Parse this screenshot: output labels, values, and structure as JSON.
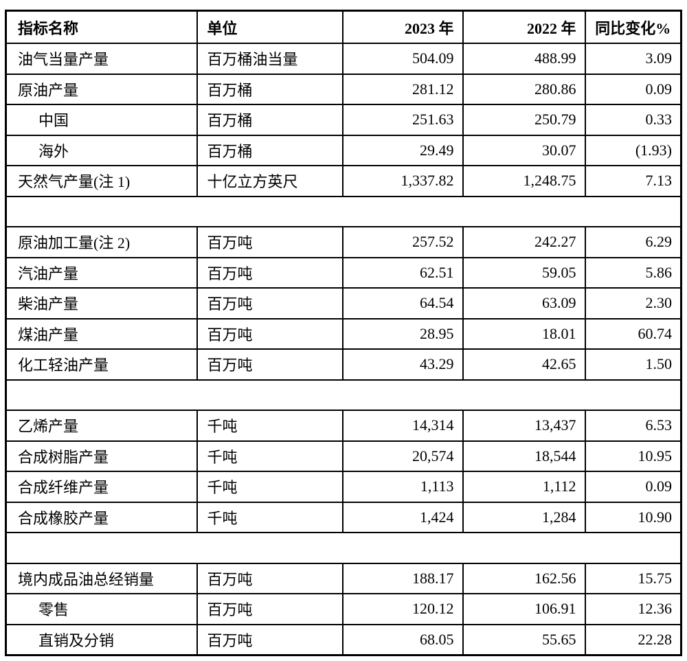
{
  "table": {
    "columns": [
      "指标名称",
      "单位",
      "2023 年",
      "2022 年",
      "同比变化%"
    ],
    "rows": [
      {
        "name": "油气当量产量",
        "unit": "百万桶油当量",
        "y2023": "504.09",
        "y2022": "488.99",
        "change": "3.09",
        "indent": false,
        "empty": false
      },
      {
        "name": "原油产量",
        "unit": "百万桶",
        "y2023": "281.12",
        "y2022": "280.86",
        "change": "0.09",
        "indent": false,
        "empty": false
      },
      {
        "name": "中国",
        "unit": "百万桶",
        "y2023": "251.63",
        "y2022": "250.79",
        "change": "0.33",
        "indent": true,
        "empty": false
      },
      {
        "name": "海外",
        "unit": "百万桶",
        "y2023": "29.49",
        "y2022": "30.07",
        "change": "(1.93)",
        "indent": true,
        "empty": false
      },
      {
        "name": "天然气产量(注 1)",
        "unit": "十亿立方英尺",
        "y2023": "1,337.82",
        "y2022": "1,248.75",
        "change": "7.13",
        "indent": false,
        "empty": false
      },
      {
        "empty": true
      },
      {
        "name": "原油加工量(注 2)",
        "unit": "百万吨",
        "y2023": "257.52",
        "y2022": "242.27",
        "change": "6.29",
        "indent": false,
        "empty": false
      },
      {
        "name": "汽油产量",
        "unit": "百万吨",
        "y2023": "62.51",
        "y2022": "59.05",
        "change": "5.86",
        "indent": false,
        "empty": false
      },
      {
        "name": "柴油产量",
        "unit": "百万吨",
        "y2023": "64.54",
        "y2022": "63.09",
        "change": "2.30",
        "indent": false,
        "empty": false
      },
      {
        "name": "煤油产量",
        "unit": "百万吨",
        "y2023": "28.95",
        "y2022": "18.01",
        "change": "60.74",
        "indent": false,
        "empty": false
      },
      {
        "name": "化工轻油产量",
        "unit": "百万吨",
        "y2023": "43.29",
        "y2022": "42.65",
        "change": "1.50",
        "indent": false,
        "empty": false
      },
      {
        "empty": true
      },
      {
        "name": "乙烯产量",
        "unit": "千吨",
        "y2023": "14,314",
        "y2022": "13,437",
        "change": "6.53",
        "indent": false,
        "empty": false
      },
      {
        "name": "合成树脂产量",
        "unit": "千吨",
        "y2023": "20,574",
        "y2022": "18,544",
        "change": "10.95",
        "indent": false,
        "empty": false
      },
      {
        "name": "合成纤维产量",
        "unit": "千吨",
        "y2023": "1,113",
        "y2022": "1,112",
        "change": "0.09",
        "indent": false,
        "empty": false
      },
      {
        "name": "合成橡胶产量",
        "unit": "千吨",
        "y2023": "1,424",
        "y2022": "1,284",
        "change": "10.90",
        "indent": false,
        "empty": false
      },
      {
        "empty": true
      },
      {
        "name": "境内成品油总经销量",
        "unit": "百万吨",
        "y2023": "188.17",
        "y2022": "162.56",
        "change": "15.75",
        "indent": false,
        "empty": false
      },
      {
        "name": "零售",
        "unit": "百万吨",
        "y2023": "120.12",
        "y2022": "106.91",
        "change": "12.36",
        "indent": true,
        "empty": false
      },
      {
        "name": "直销及分销",
        "unit": "百万吨",
        "y2023": "68.05",
        "y2022": "55.65",
        "change": "22.28",
        "indent": true,
        "empty": false
      }
    ]
  }
}
